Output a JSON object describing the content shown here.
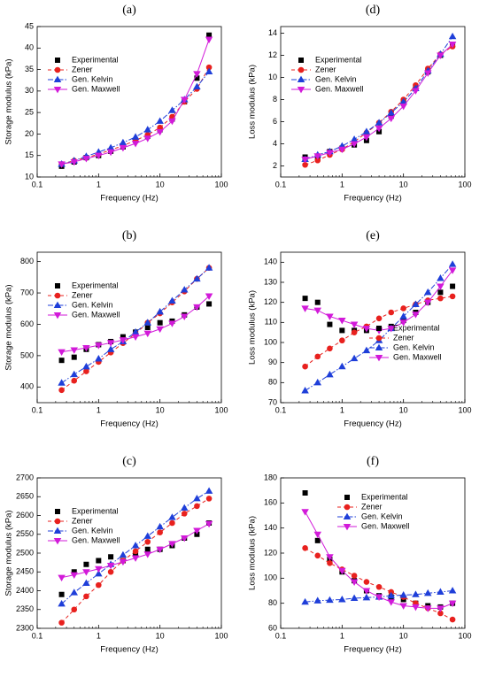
{
  "chart_data": [
    {
      "type": "line",
      "title": "(a)",
      "x_label": "Frequency (Hz)",
      "y_label": "Storage modulus (kPa)",
      "log_x": true,
      "legend": "upper left",
      "xlim": [
        0.1,
        100
      ],
      "xticks": [
        0.1,
        1,
        10,
        100
      ],
      "ylim": [
        10,
        45
      ],
      "yticks": [
        10,
        15,
        20,
        25,
        30,
        35,
        40,
        45
      ],
      "x": [
        0.25,
        0.4,
        0.63,
        1,
        1.58,
        2.5,
        4,
        6.3,
        10,
        15.8,
        25,
        40,
        63
      ],
      "series": [
        {
          "name": "Experimental",
          "color": "#000000",
          "marker": "square",
          "line": "none",
          "values": [
            12.5,
            13.5,
            14.5,
            15,
            16,
            17,
            18.5,
            19.5,
            21,
            23.5,
            27.5,
            33,
            43
          ]
        },
        {
          "name": "Zener",
          "color": "#e8211e",
          "marker": "circle",
          "line": "dashed",
          "values": [
            13,
            13.8,
            14.5,
            15.3,
            16.3,
            17.3,
            18.5,
            19.8,
            21.5,
            24,
            27.5,
            30.5,
            35.5
          ]
        },
        {
          "name": "Gen. Kelvin",
          "color": "#1f3fd9",
          "marker": "triangle-up",
          "line": "dashdot",
          "values": [
            13,
            13.8,
            14.8,
            15.8,
            16.8,
            18,
            19.3,
            21,
            23,
            25.5,
            28,
            31,
            34.5
          ]
        },
        {
          "name": "Gen. Maxwell",
          "color": "#d21ad9",
          "marker": "triangle-down",
          "line": "solid",
          "values": [
            13,
            13.5,
            14.3,
            15,
            15.8,
            16.8,
            17.8,
            19,
            20.5,
            23,
            28,
            34,
            42
          ]
        }
      ]
    },
    {
      "type": "line",
      "title": "(b)",
      "x_label": "Frequency (Hz)",
      "y_label": "Storage modulus (kPa)",
      "log_x": true,
      "legend": "upper left",
      "xlim": [
        0.1,
        100
      ],
      "xticks": [
        0.1,
        1,
        10,
        100
      ],
      "ylim": [
        350,
        830
      ],
      "yticks": [
        400,
        500,
        600,
        700,
        800
      ],
      "x": [
        0.25,
        0.4,
        0.63,
        1,
        1.58,
        2.5,
        4,
        6.3,
        10,
        15.8,
        25,
        40,
        63
      ],
      "series": [
        {
          "name": "Experimental",
          "color": "#000000",
          "marker": "square",
          "line": "none",
          "values": [
            485,
            495,
            520,
            535,
            545,
            560,
            575,
            590,
            605,
            610,
            630,
            655,
            665
          ]
        },
        {
          "name": "Zener",
          "color": "#e8211e",
          "marker": "circle",
          "line": "dashed",
          "values": [
            390,
            420,
            450,
            480,
            510,
            540,
            570,
            605,
            635,
            670,
            705,
            745,
            780
          ]
        },
        {
          "name": "Gen. Kelvin",
          "color": "#1f3fd9",
          "marker": "triangle-up",
          "line": "dashdot",
          "values": [
            413,
            440,
            465,
            490,
            520,
            545,
            575,
            605,
            640,
            675,
            710,
            745,
            780
          ]
        },
        {
          "name": "Gen. Maxwell",
          "color": "#d21ad9",
          "marker": "triangle-down",
          "line": "solid",
          "values": [
            512,
            518,
            525,
            533,
            541,
            550,
            560,
            571,
            585,
            603,
            625,
            655,
            690
          ]
        }
      ]
    },
    {
      "type": "line",
      "title": "(c)",
      "x_label": "Frequency (Hz)",
      "y_label": "Storage modulus (kPa)",
      "log_x": true,
      "legend": "upper left",
      "xlim": [
        0.1,
        100
      ],
      "xticks": [
        0.1,
        1,
        10,
        100
      ],
      "ylim": [
        2300,
        2700
      ],
      "yticks": [
        2300,
        2350,
        2400,
        2450,
        2500,
        2550,
        2600,
        2650,
        2700
      ],
      "x": [
        0.25,
        0.4,
        0.63,
        1,
        1.58,
        2.5,
        4,
        6.3,
        10,
        15.8,
        25,
        40,
        63
      ],
      "series": [
        {
          "name": "Experimental",
          "color": "#000000",
          "marker": "square",
          "line": "none",
          "values": [
            2390,
            2450,
            2470,
            2480,
            2490,
            2480,
            2500,
            2510,
            2510,
            2520,
            2540,
            2550,
            2580
          ]
        },
        {
          "name": "Zener",
          "color": "#e8211e",
          "marker": "circle",
          "line": "dashed",
          "values": [
            2315,
            2350,
            2385,
            2415,
            2450,
            2480,
            2505,
            2530,
            2555,
            2580,
            2605,
            2625,
            2645
          ]
        },
        {
          "name": "Gen. Kelvin",
          "color": "#1f3fd9",
          "marker": "triangle-up",
          "line": "dashdot",
          "values": [
            2365,
            2395,
            2420,
            2445,
            2470,
            2495,
            2520,
            2545,
            2570,
            2595,
            2620,
            2645,
            2665
          ]
        },
        {
          "name": "Gen. Maxwell",
          "color": "#d21ad9",
          "marker": "triangle-down",
          "line": "solid",
          "values": [
            2435,
            2442,
            2450,
            2458,
            2467,
            2477,
            2487,
            2497,
            2510,
            2525,
            2540,
            2560,
            2578
          ]
        }
      ]
    },
    {
      "type": "line",
      "title": "(d)",
      "x_label": "Frequency (Hz)",
      "y_label": "Loss modulus (kPa)",
      "log_x": true,
      "legend": "upper left",
      "xlim": [
        0.1,
        100
      ],
      "xticks": [
        0.1,
        1,
        10,
        100
      ],
      "ylim": [
        1,
        14.6
      ],
      "yticks": [
        2,
        4,
        6,
        8,
        10,
        12,
        14
      ],
      "x": [
        0.25,
        0.4,
        0.63,
        1,
        1.58,
        2.5,
        4,
        6.3,
        10,
        15.8,
        25,
        40,
        63
      ],
      "series": [
        {
          "name": "Experimental",
          "color": "#000000",
          "marker": "square",
          "line": "none",
          "values": [
            2.8,
            2.7,
            3.3,
            3.6,
            3.9,
            4.3,
            5.1,
            6.5,
            7.7,
            9,
            10.5,
            12,
            13
          ]
        },
        {
          "name": "Zener",
          "color": "#e8211e",
          "marker": "circle",
          "line": "dashed",
          "values": [
            2.1,
            2.5,
            3,
            3.5,
            4.2,
            5,
            5.9,
            6.9,
            8,
            9.3,
            10.8,
            12.1,
            12.8
          ]
        },
        {
          "name": "Gen. Kelvin",
          "color": "#1f3fd9",
          "marker": "triangle-up",
          "line": "dashdot",
          "values": [
            2.6,
            3,
            3.3,
            3.8,
            4.4,
            5.1,
            5.9,
            6.8,
            7.8,
            9,
            10.6,
            12.1,
            13.7
          ]
        },
        {
          "name": "Gen. Maxwell",
          "color": "#d21ad9",
          "marker": "triangle-down",
          "line": "solid",
          "values": [
            2.6,
            2.9,
            3.2,
            3.5,
            4,
            4.6,
            5.4,
            6.3,
            7.4,
            8.8,
            10.4,
            12,
            13
          ]
        }
      ]
    },
    {
      "type": "line",
      "title": "(e)",
      "x_label": "Frequency (Hz)",
      "y_label": "Loss modulus (kPa)",
      "log_x": true,
      "legend": "lower right",
      "xlim": [
        0.1,
        100
      ],
      "xticks": [
        0.1,
        1,
        10,
        100
      ],
      "ylim": [
        70,
        145
      ],
      "yticks": [
        70,
        80,
        90,
        100,
        110,
        120,
        130,
        140
      ],
      "x": [
        0.25,
        0.4,
        0.63,
        1,
        1.58,
        2.5,
        4,
        6.3,
        10,
        15.8,
        25,
        40,
        63
      ],
      "series": [
        {
          "name": "Experimental",
          "color": "#000000",
          "marker": "square",
          "line": "none",
          "values": [
            122,
            120,
            109,
            106,
            106,
            106,
            107,
            108,
            111,
            115,
            120,
            125,
            128
          ]
        },
        {
          "name": "Zener",
          "color": "#e8211e",
          "marker": "circle",
          "line": "dashed",
          "values": [
            88,
            93,
            97,
            101,
            105,
            108,
            112,
            115,
            117,
            119,
            121,
            122,
            123
          ]
        },
        {
          "name": "Gen. Kelvin",
          "color": "#1f3fd9",
          "marker": "triangle-up",
          "line": "dashdot",
          "values": [
            76,
            80,
            84,
            88,
            92,
            96,
            101,
            107,
            113,
            119,
            125,
            132,
            139
          ]
        },
        {
          "name": "Gen. Maxwell",
          "color": "#d21ad9",
          "marker": "triangle-down",
          "line": "solid",
          "values": [
            117,
            116,
            113,
            111,
            109,
            107,
            106,
            107,
            110,
            114,
            120,
            128,
            136
          ]
        }
      ]
    },
    {
      "type": "line",
      "title": "(f)",
      "x_label": "Frequency (Hz)",
      "y_label": "Loss modulus (kPa)",
      "log_x": true,
      "legend": "upper center",
      "xlim": [
        0.1,
        100
      ],
      "xticks": [
        0.1,
        1,
        10,
        100
      ],
      "ylim": [
        60,
        180
      ],
      "yticks": [
        60,
        80,
        100,
        120,
        140,
        160,
        180
      ],
      "x": [
        0.25,
        0.4,
        0.63,
        1,
        1.58,
        2.5,
        4,
        6.3,
        10,
        15.8,
        25,
        40,
        63
      ],
      "series": [
        {
          "name": "Experimental",
          "color": "#000000",
          "marker": "square",
          "line": "none",
          "values": [
            168,
            130,
            115,
            105,
            98,
            90,
            86,
            85,
            83,
            80,
            78,
            77,
            80
          ]
        },
        {
          "name": "Zener",
          "color": "#e8211e",
          "marker": "circle",
          "line": "dashed",
          "values": [
            124,
            118,
            112,
            107,
            102,
            97,
            93,
            89,
            85,
            80,
            76,
            72,
            67
          ]
        },
        {
          "name": "Gen. Kelvin",
          "color": "#1f3fd9",
          "marker": "triangle-up",
          "line": "dashdot",
          "values": [
            81,
            82,
            82.5,
            83,
            84,
            84.5,
            85,
            86,
            86.5,
            87,
            88,
            89,
            90
          ]
        },
        {
          "name": "Gen. Maxwell",
          "color": "#d21ad9",
          "marker": "triangle-down",
          "line": "solid",
          "values": [
            153,
            135,
            117,
            106,
            97,
            90,
            85,
            81,
            78,
            77,
            76,
            76,
            80
          ]
        }
      ]
    }
  ]
}
